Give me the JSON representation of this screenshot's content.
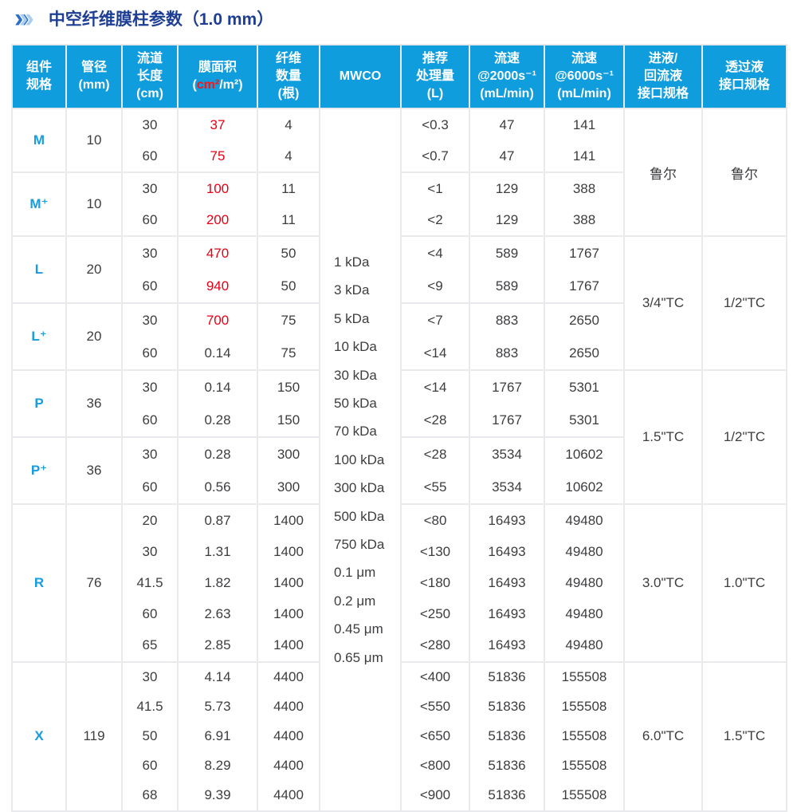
{
  "page": {
    "title": "中空纤维膜柱参数（1.0 mm）"
  },
  "colors": {
    "header_bg": "#0f9dde",
    "spec_blue": "#169ce2",
    "accent_red": "#e60014",
    "title_blue": "#1d3e94",
    "chevron_dark": "#2b70c6",
    "chevron_light": "#abcdf1",
    "border": "#e9eaee",
    "body_text": "#3d3d40"
  },
  "icons": {
    "title_chevron": "double-chevron-right"
  },
  "table": {
    "headers": [
      {
        "lines": [
          "组件",
          "规格"
        ]
      },
      {
        "lines": [
          "管径",
          "(mm)"
        ]
      },
      {
        "lines": [
          "流道",
          "长度",
          "(cm)"
        ]
      },
      {
        "label": "膜面积",
        "unit_pre": "(",
        "unit_red": "cm²",
        "unit_post": "/m²)"
      },
      {
        "lines": [
          "纤维",
          "数量",
          "(根)"
        ]
      },
      {
        "lines": [
          "MWCO"
        ]
      },
      {
        "lines": [
          "推荐",
          "处理量",
          "(L)"
        ]
      },
      {
        "lines": [
          "流速",
          "@2000s⁻¹",
          "(mL/min)"
        ]
      },
      {
        "lines": [
          "流速",
          "@6000s⁻¹",
          "(mL/min)"
        ]
      },
      {
        "lines": [
          "进液/",
          "回流液",
          "接口规格"
        ]
      },
      {
        "lines": [
          "透过液",
          "接口规格"
        ]
      }
    ],
    "mwco_values": [
      "1 kDa",
      "3 kDa",
      "5 kDa",
      "10 kDa",
      "30 kDa",
      "50 kDa",
      "70 kDa",
      "100 kDa",
      "300 kDa",
      "500 kDa",
      "750 kDa",
      "0.1 μm",
      "0.2 μm",
      "0.45 μm",
      "0.65 μm"
    ],
    "groups": [
      {
        "spec": "M",
        "diameter": "10",
        "inlet": {
          "label": "鲁尔",
          "span": 2
        },
        "permeate": {
          "label": "鲁尔",
          "span": 2
        },
        "rows": [
          {
            "length": "30",
            "area": "37",
            "area_red": true,
            "fibers": "4",
            "throughput": "<0.3",
            "flow_2000": "47",
            "flow_6000": "141"
          },
          {
            "length": "60",
            "area": "75",
            "area_red": true,
            "fibers": "4",
            "throughput": "<0.7",
            "flow_2000": "47",
            "flow_6000": "141"
          }
        ]
      },
      {
        "spec": "M⁺",
        "diameter": "10",
        "rows": [
          {
            "length": "30",
            "area": "100",
            "area_red": true,
            "fibers": "11",
            "throughput": "<1",
            "flow_2000": "129",
            "flow_6000": "388"
          },
          {
            "length": "60",
            "area": "200",
            "area_red": true,
            "fibers": "11",
            "throughput": "<2",
            "flow_2000": "129",
            "flow_6000": "388"
          }
        ]
      },
      {
        "spec": "L",
        "diameter": "20",
        "inlet": {
          "label": "3/4\"TC",
          "span": 2
        },
        "permeate": {
          "label": "1/2\"TC",
          "span": 2
        },
        "rows": [
          {
            "length": "30",
            "area": "470",
            "area_red": true,
            "fibers": "50",
            "throughput": "<4",
            "flow_2000": "589",
            "flow_6000": "1767"
          },
          {
            "length": "60",
            "area": "940",
            "area_red": true,
            "fibers": "50",
            "throughput": "<9",
            "flow_2000": "589",
            "flow_6000": "1767"
          }
        ]
      },
      {
        "spec": "L⁺",
        "diameter": "20",
        "rows": [
          {
            "length": "30",
            "area": "700",
            "area_red": true,
            "fibers": "75",
            "throughput": "<7",
            "flow_2000": "883",
            "flow_6000": "2650"
          },
          {
            "length": "60",
            "area": "0.14",
            "area_red": false,
            "fibers": "75",
            "throughput": "<14",
            "flow_2000": "883",
            "flow_6000": "2650"
          }
        ]
      },
      {
        "spec": "P",
        "diameter": "36",
        "inlet": {
          "label": "1.5\"TC",
          "span": 2
        },
        "permeate": {
          "label": "1/2\"TC",
          "span": 2
        },
        "rows": [
          {
            "length": "30",
            "area": "0.14",
            "area_red": false,
            "fibers": "150",
            "throughput": "<14",
            "flow_2000": "1767",
            "flow_6000": "5301"
          },
          {
            "length": "60",
            "area": "0.28",
            "area_red": false,
            "fibers": "150",
            "throughput": "<28",
            "flow_2000": "1767",
            "flow_6000": "5301"
          }
        ]
      },
      {
        "spec": "P⁺",
        "diameter": "36",
        "rows": [
          {
            "length": "30",
            "area": "0.28",
            "area_red": false,
            "fibers": "300",
            "throughput": "<28",
            "flow_2000": "3534",
            "flow_6000": "10602"
          },
          {
            "length": "60",
            "area": "0.56",
            "area_red": false,
            "fibers": "300",
            "throughput": "<55",
            "flow_2000": "3534",
            "flow_6000": "10602"
          }
        ]
      },
      {
        "spec": "R",
        "diameter": "76",
        "inlet": {
          "label": "3.0\"TC",
          "span": 1
        },
        "permeate": {
          "label": "1.0\"TC",
          "span": 1
        },
        "rows": [
          {
            "length": "20",
            "area": "0.87",
            "area_red": false,
            "fibers": "1400",
            "throughput": "<80",
            "flow_2000": "16493",
            "flow_6000": "49480"
          },
          {
            "length": "30",
            "area": "1.31",
            "area_red": false,
            "fibers": "1400",
            "throughput": "<130",
            "flow_2000": "16493",
            "flow_6000": "49480"
          },
          {
            "length": "41.5",
            "area": "1.82",
            "area_red": false,
            "fibers": "1400",
            "throughput": "<180",
            "flow_2000": "16493",
            "flow_6000": "49480"
          },
          {
            "length": "60",
            "area": "2.63",
            "area_red": false,
            "fibers": "1400",
            "throughput": "<250",
            "flow_2000": "16493",
            "flow_6000": "49480"
          },
          {
            "length": "65",
            "area": "2.85",
            "area_red": false,
            "fibers": "1400",
            "throughput": "<280",
            "flow_2000": "16493",
            "flow_6000": "49480"
          }
        ]
      },
      {
        "spec": "X",
        "diameter": "119",
        "inlet": {
          "label": "6.0\"TC",
          "span": 1
        },
        "permeate": {
          "label": "1.5\"TC",
          "span": 1
        },
        "rows": [
          {
            "length": "30",
            "area": "4.14",
            "area_red": false,
            "fibers": "4400",
            "throughput": "<400",
            "flow_2000": "51836",
            "flow_6000": "155508"
          },
          {
            "length": "41.5",
            "area": "5.73",
            "area_red": false,
            "fibers": "4400",
            "throughput": "<550",
            "flow_2000": "51836",
            "flow_6000": "155508"
          },
          {
            "length": "50",
            "area": "6.91",
            "area_red": false,
            "fibers": "4400",
            "throughput": "<650",
            "flow_2000": "51836",
            "flow_6000": "155508"
          },
          {
            "length": "60",
            "area": "8.29",
            "area_red": false,
            "fibers": "4400",
            "throughput": "<800",
            "flow_2000": "51836",
            "flow_6000": "155508"
          },
          {
            "length": "68",
            "area": "9.39",
            "area_red": false,
            "fibers": "4400",
            "throughput": "<900",
            "flow_2000": "51836",
            "flow_6000": "155508"
          }
        ]
      }
    ]
  }
}
